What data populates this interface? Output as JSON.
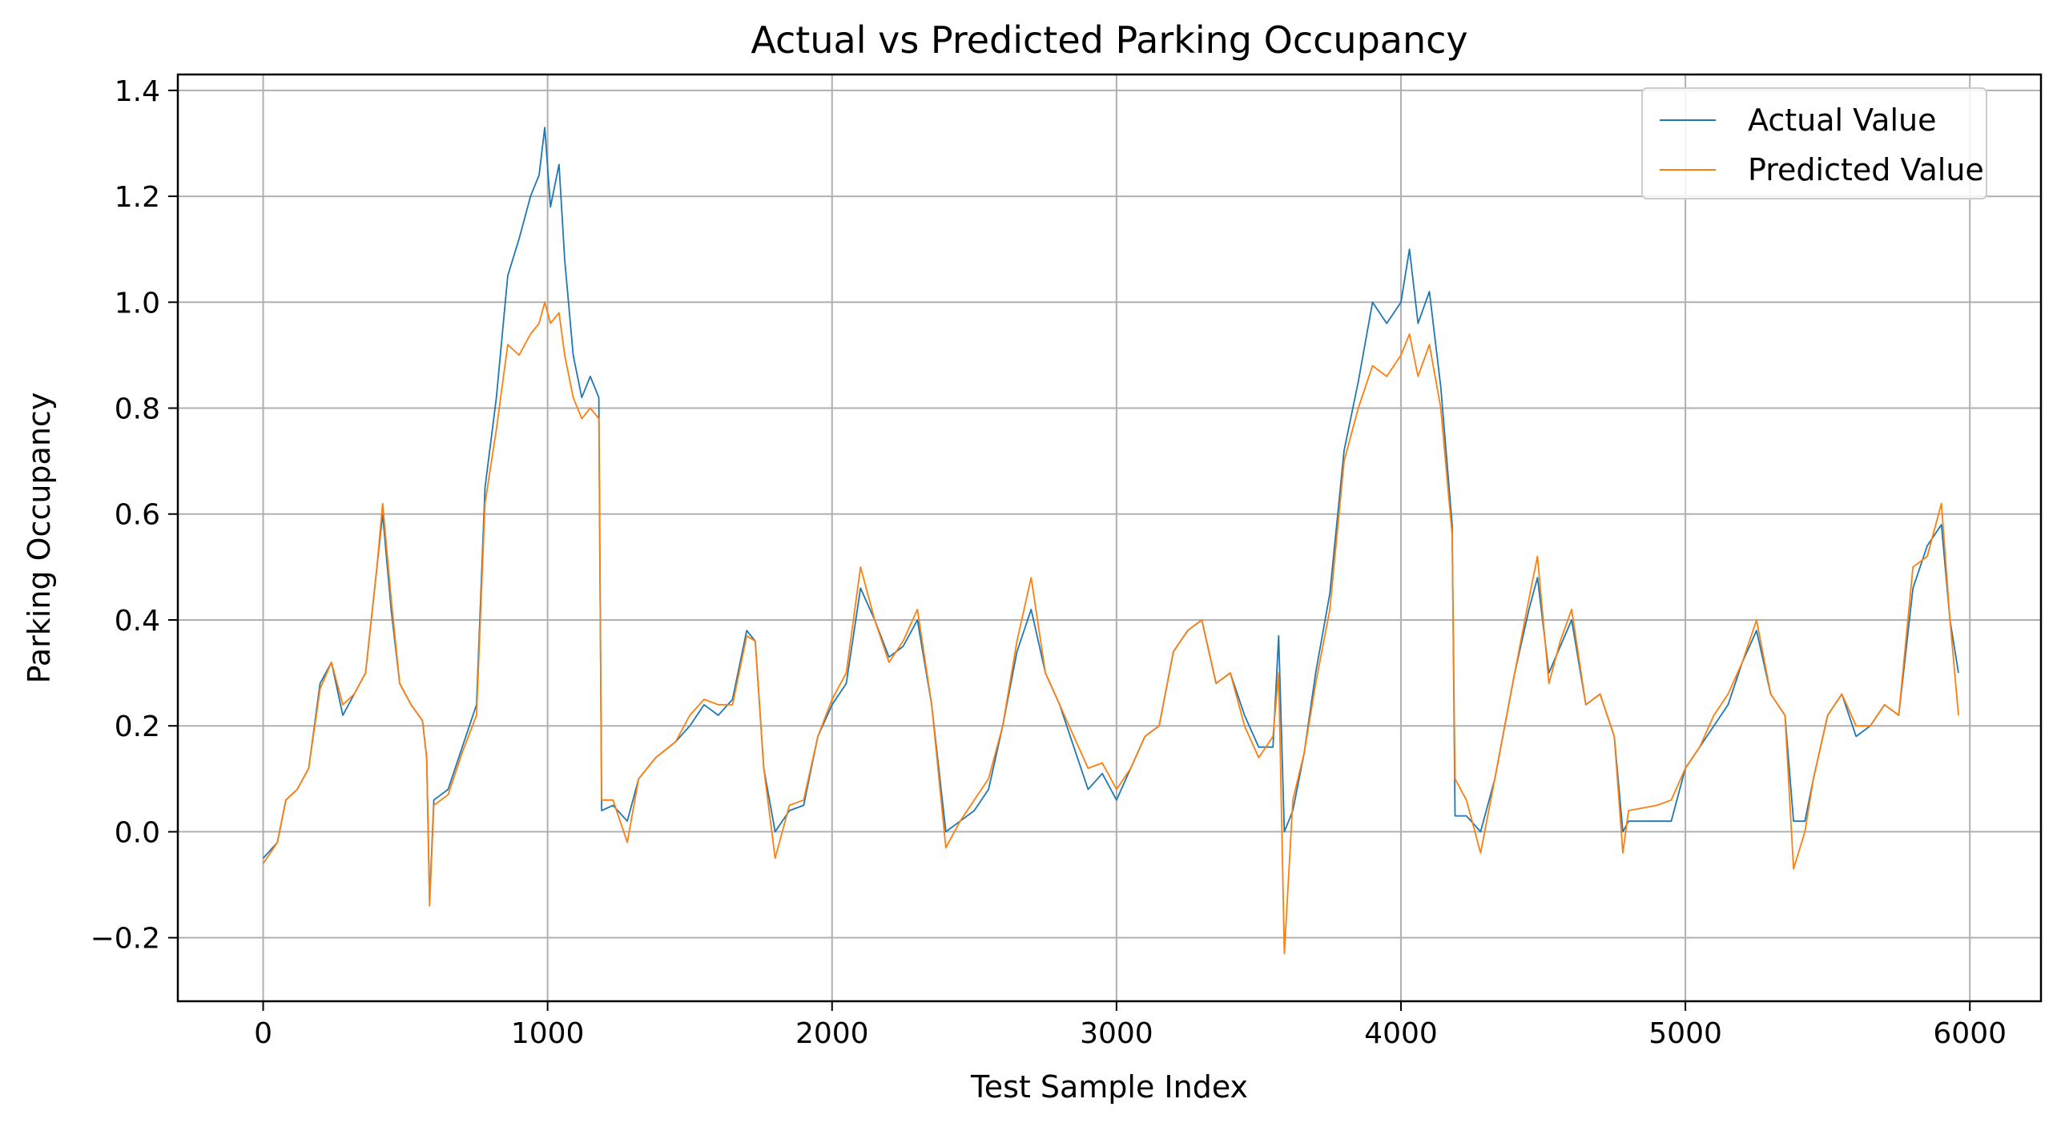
{
  "chart_data": {
    "type": "line",
    "title": "Actual vs Predicted Parking Occupancy",
    "xlabel": "Test Sample Index",
    "ylabel": "Parking Occupancy",
    "xlim": [
      -300,
      6250
    ],
    "ylim": [
      -0.32,
      1.43
    ],
    "xticks": [
      0,
      1000,
      2000,
      3000,
      4000,
      5000,
      6000
    ],
    "yticks": [
      -0.2,
      0.0,
      0.2,
      0.4,
      0.6,
      0.8,
      1.0,
      1.2,
      1.4
    ],
    "xtick_labels": [
      "0",
      "1000",
      "2000",
      "3000",
      "4000",
      "5000",
      "6000"
    ],
    "ytick_labels": [
      "−0.2",
      "0.0",
      "0.2",
      "0.4",
      "0.6",
      "0.8",
      "1.0",
      "1.2",
      "1.4"
    ],
    "grid": true,
    "legend_position": "top-right",
    "series": [
      {
        "name": "Actual Value",
        "color": "#1f77b4",
        "points": [
          [
            0,
            -0.05
          ],
          [
            50,
            -0.02
          ],
          [
            80,
            0.06
          ],
          [
            120,
            0.08
          ],
          [
            160,
            0.12
          ],
          [
            200,
            0.28
          ],
          [
            240,
            0.32
          ],
          [
            280,
            0.22
          ],
          [
            320,
            0.26
          ],
          [
            360,
            0.3
          ],
          [
            400,
            0.5
          ],
          [
            420,
            0.6
          ],
          [
            450,
            0.42
          ],
          [
            480,
            0.28
          ],
          [
            520,
            0.24
          ],
          [
            560,
            0.21
          ],
          [
            575,
            0.14
          ],
          [
            585,
            -0.13
          ],
          [
            600,
            0.06
          ],
          [
            650,
            0.08
          ],
          [
            700,
            0.16
          ],
          [
            750,
            0.24
          ],
          [
            780,
            0.65
          ],
          [
            820,
            0.82
          ],
          [
            860,
            1.05
          ],
          [
            900,
            1.12
          ],
          [
            940,
            1.2
          ],
          [
            970,
            1.24
          ],
          [
            990,
            1.33
          ],
          [
            1010,
            1.18
          ],
          [
            1040,
            1.26
          ],
          [
            1060,
            1.08
          ],
          [
            1090,
            0.9
          ],
          [
            1120,
            0.82
          ],
          [
            1150,
            0.86
          ],
          [
            1180,
            0.82
          ],
          [
            1190,
            0.04
          ],
          [
            1230,
            0.05
          ],
          [
            1280,
            0.02
          ],
          [
            1320,
            0.1
          ],
          [
            1380,
            0.14
          ],
          [
            1450,
            0.17
          ],
          [
            1500,
            0.2
          ],
          [
            1550,
            0.24
          ],
          [
            1600,
            0.22
          ],
          [
            1650,
            0.25
          ],
          [
            1700,
            0.38
          ],
          [
            1730,
            0.36
          ],
          [
            1760,
            0.12
          ],
          [
            1800,
            0.0
          ],
          [
            1850,
            0.04
          ],
          [
            1900,
            0.05
          ],
          [
            1950,
            0.18
          ],
          [
            2000,
            0.24
          ],
          [
            2050,
            0.28
          ],
          [
            2100,
            0.46
          ],
          [
            2150,
            0.4
          ],
          [
            2200,
            0.33
          ],
          [
            2250,
            0.35
          ],
          [
            2300,
            0.4
          ],
          [
            2350,
            0.24
          ],
          [
            2400,
            0.0
          ],
          [
            2450,
            0.02
          ],
          [
            2500,
            0.04
          ],
          [
            2550,
            0.08
          ],
          [
            2600,
            0.2
          ],
          [
            2650,
            0.34
          ],
          [
            2700,
            0.42
          ],
          [
            2750,
            0.3
          ],
          [
            2800,
            0.24
          ],
          [
            2850,
            0.16
          ],
          [
            2900,
            0.08
          ],
          [
            2950,
            0.11
          ],
          [
            3000,
            0.06
          ],
          [
            3050,
            0.12
          ],
          [
            3100,
            0.18
          ],
          [
            3150,
            0.2
          ],
          [
            3200,
            0.34
          ],
          [
            3250,
            0.38
          ],
          [
            3300,
            0.4
          ],
          [
            3350,
            0.28
          ],
          [
            3400,
            0.3
          ],
          [
            3450,
            0.22
          ],
          [
            3500,
            0.16
          ],
          [
            3550,
            0.16
          ],
          [
            3570,
            0.37
          ],
          [
            3590,
            0.0
          ],
          [
            3620,
            0.04
          ],
          [
            3660,
            0.15
          ],
          [
            3700,
            0.3
          ],
          [
            3750,
            0.45
          ],
          [
            3800,
            0.72
          ],
          [
            3850,
            0.85
          ],
          [
            3900,
            1.0
          ],
          [
            3950,
            0.96
          ],
          [
            4000,
            1.0
          ],
          [
            4030,
            1.1
          ],
          [
            4060,
            0.96
          ],
          [
            4100,
            1.02
          ],
          [
            4140,
            0.84
          ],
          [
            4180,
            0.58
          ],
          [
            4190,
            0.03
          ],
          [
            4230,
            0.03
          ],
          [
            4280,
            0.0
          ],
          [
            4330,
            0.1
          ],
          [
            4400,
            0.3
          ],
          [
            4450,
            0.42
          ],
          [
            4480,
            0.48
          ],
          [
            4520,
            0.3
          ],
          [
            4560,
            0.35
          ],
          [
            4600,
            0.4
          ],
          [
            4650,
            0.24
          ],
          [
            4700,
            0.26
          ],
          [
            4750,
            0.18
          ],
          [
            4780,
            0.0
          ],
          [
            4800,
            0.02
          ],
          [
            4900,
            0.02
          ],
          [
            4950,
            0.02
          ],
          [
            5000,
            0.12
          ],
          [
            5050,
            0.16
          ],
          [
            5100,
            0.2
          ],
          [
            5150,
            0.24
          ],
          [
            5200,
            0.32
          ],
          [
            5250,
            0.38
          ],
          [
            5300,
            0.26
          ],
          [
            5350,
            0.22
          ],
          [
            5380,
            0.02
          ],
          [
            5420,
            0.02
          ],
          [
            5450,
            0.1
          ],
          [
            5500,
            0.22
          ],
          [
            5550,
            0.26
          ],
          [
            5600,
            0.18
          ],
          [
            5650,
            0.2
          ],
          [
            5700,
            0.24
          ],
          [
            5750,
            0.22
          ],
          [
            5800,
            0.46
          ],
          [
            5850,
            0.54
          ],
          [
            5900,
            0.58
          ],
          [
            5930,
            0.4
          ],
          [
            5960,
            0.3
          ]
        ]
      },
      {
        "name": "Predicted Value",
        "color": "#ff7f0e",
        "points": [
          [
            0,
            -0.06
          ],
          [
            50,
            -0.02
          ],
          [
            80,
            0.06
          ],
          [
            120,
            0.08
          ],
          [
            160,
            0.12
          ],
          [
            200,
            0.27
          ],
          [
            240,
            0.32
          ],
          [
            280,
            0.24
          ],
          [
            320,
            0.26
          ],
          [
            360,
            0.3
          ],
          [
            400,
            0.5
          ],
          [
            420,
            0.62
          ],
          [
            450,
            0.44
          ],
          [
            480,
            0.28
          ],
          [
            520,
            0.24
          ],
          [
            560,
            0.21
          ],
          [
            575,
            0.14
          ],
          [
            585,
            -0.14
          ],
          [
            600,
            0.05
          ],
          [
            650,
            0.07
          ],
          [
            700,
            0.15
          ],
          [
            750,
            0.22
          ],
          [
            780,
            0.62
          ],
          [
            820,
            0.76
          ],
          [
            860,
            0.92
          ],
          [
            900,
            0.9
          ],
          [
            940,
            0.94
          ],
          [
            970,
            0.96
          ],
          [
            990,
            1.0
          ],
          [
            1010,
            0.96
          ],
          [
            1040,
            0.98
          ],
          [
            1060,
            0.9
          ],
          [
            1090,
            0.82
          ],
          [
            1120,
            0.78
          ],
          [
            1150,
            0.8
          ],
          [
            1180,
            0.78
          ],
          [
            1190,
            0.06
          ],
          [
            1230,
            0.06
          ],
          [
            1280,
            -0.02
          ],
          [
            1320,
            0.1
          ],
          [
            1380,
            0.14
          ],
          [
            1450,
            0.17
          ],
          [
            1500,
            0.22
          ],
          [
            1550,
            0.25
          ],
          [
            1600,
            0.24
          ],
          [
            1650,
            0.24
          ],
          [
            1700,
            0.37
          ],
          [
            1730,
            0.36
          ],
          [
            1760,
            0.12
          ],
          [
            1800,
            -0.05
          ],
          [
            1850,
            0.05
          ],
          [
            1900,
            0.06
          ],
          [
            1950,
            0.18
          ],
          [
            2000,
            0.25
          ],
          [
            2050,
            0.3
          ],
          [
            2100,
            0.5
          ],
          [
            2150,
            0.4
          ],
          [
            2200,
            0.32
          ],
          [
            2250,
            0.36
          ],
          [
            2300,
            0.42
          ],
          [
            2350,
            0.24
          ],
          [
            2400,
            -0.03
          ],
          [
            2450,
            0.02
          ],
          [
            2500,
            0.06
          ],
          [
            2550,
            0.1
          ],
          [
            2600,
            0.2
          ],
          [
            2650,
            0.36
          ],
          [
            2700,
            0.48
          ],
          [
            2750,
            0.3
          ],
          [
            2800,
            0.24
          ],
          [
            2850,
            0.18
          ],
          [
            2900,
            0.12
          ],
          [
            2950,
            0.13
          ],
          [
            3000,
            0.08
          ],
          [
            3050,
            0.12
          ],
          [
            3100,
            0.18
          ],
          [
            3150,
            0.2
          ],
          [
            3200,
            0.34
          ],
          [
            3250,
            0.38
          ],
          [
            3300,
            0.4
          ],
          [
            3350,
            0.28
          ],
          [
            3400,
            0.3
          ],
          [
            3450,
            0.2
          ],
          [
            3500,
            0.14
          ],
          [
            3550,
            0.18
          ],
          [
            3570,
            0.3
          ],
          [
            3590,
            -0.23
          ],
          [
            3620,
            0.06
          ],
          [
            3660,
            0.15
          ],
          [
            3700,
            0.28
          ],
          [
            3750,
            0.42
          ],
          [
            3800,
            0.7
          ],
          [
            3850,
            0.8
          ],
          [
            3900,
            0.88
          ],
          [
            3950,
            0.86
          ],
          [
            4000,
            0.9
          ],
          [
            4030,
            0.94
          ],
          [
            4060,
            0.86
          ],
          [
            4100,
            0.92
          ],
          [
            4140,
            0.8
          ],
          [
            4180,
            0.56
          ],
          [
            4190,
            0.1
          ],
          [
            4230,
            0.06
          ],
          [
            4280,
            -0.04
          ],
          [
            4330,
            0.1
          ],
          [
            4400,
            0.3
          ],
          [
            4450,
            0.44
          ],
          [
            4480,
            0.52
          ],
          [
            4520,
            0.28
          ],
          [
            4560,
            0.36
          ],
          [
            4600,
            0.42
          ],
          [
            4650,
            0.24
          ],
          [
            4700,
            0.26
          ],
          [
            4750,
            0.18
          ],
          [
            4780,
            -0.04
          ],
          [
            4800,
            0.04
          ],
          [
            4900,
            0.05
          ],
          [
            4950,
            0.06
          ],
          [
            5000,
            0.12
          ],
          [
            5050,
            0.16
          ],
          [
            5100,
            0.22
          ],
          [
            5150,
            0.26
          ],
          [
            5200,
            0.32
          ],
          [
            5250,
            0.4
          ],
          [
            5300,
            0.26
          ],
          [
            5350,
            0.22
          ],
          [
            5380,
            -0.07
          ],
          [
            5420,
            0.0
          ],
          [
            5450,
            0.1
          ],
          [
            5500,
            0.22
          ],
          [
            5550,
            0.26
          ],
          [
            5600,
            0.2
          ],
          [
            5650,
            0.2
          ],
          [
            5700,
            0.24
          ],
          [
            5750,
            0.22
          ],
          [
            5800,
            0.5
          ],
          [
            5850,
            0.52
          ],
          [
            5900,
            0.62
          ],
          [
            5930,
            0.4
          ],
          [
            5960,
            0.22
          ]
        ]
      }
    ]
  }
}
